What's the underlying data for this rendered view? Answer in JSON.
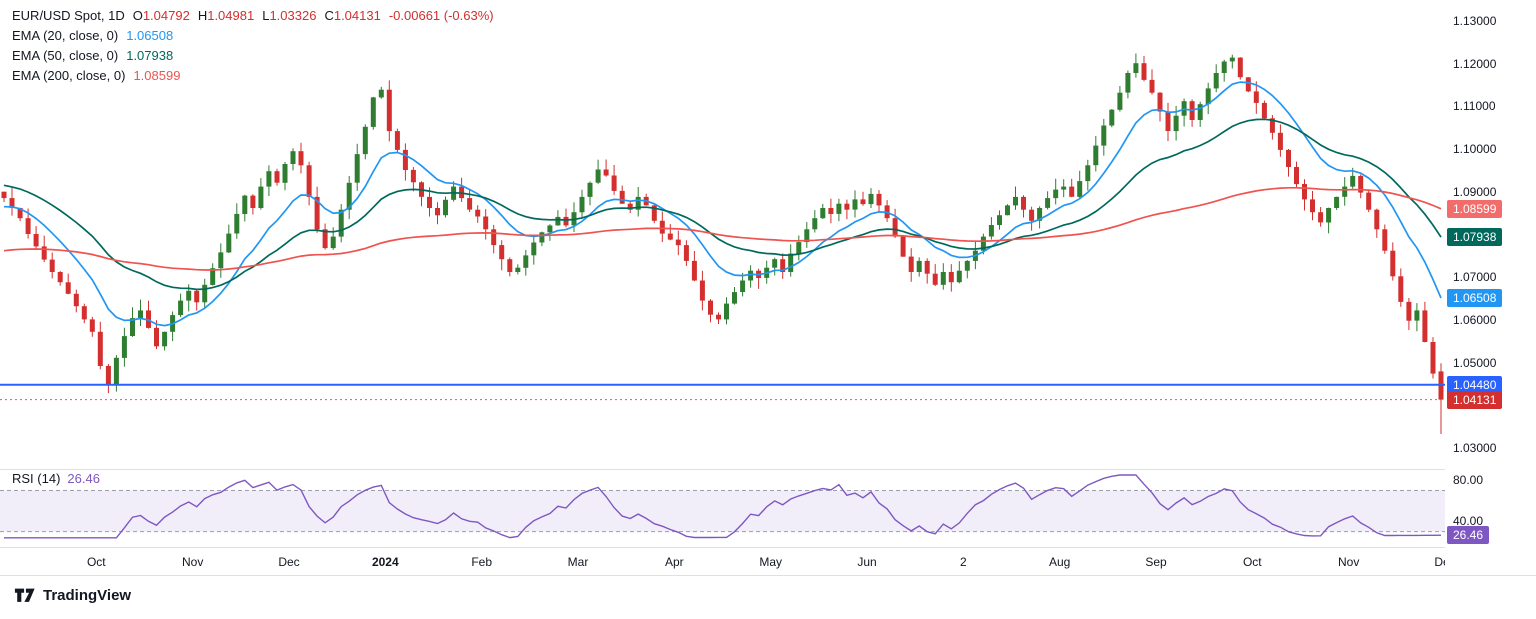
{
  "legend": {
    "symbol": "EUR/USD Spot, 1D",
    "o_key": "O",
    "o_val": "1.04792",
    "h_key": "H",
    "h_val": "1.04981",
    "l_key": "L",
    "l_val": "1.03326",
    "c_key": "C",
    "c_val": "1.04131",
    "change": "-0.00661 (-0.63%)",
    "ema20_label": "EMA (20, close, 0)",
    "ema20_value": "1.06508",
    "ema50_label": "EMA (50, close, 0)",
    "ema50_value": "1.07938",
    "ema200_label": "EMA (200, close, 0)",
    "ema200_value": "1.08599",
    "rsi_label": "RSI (14)",
    "rsi_value": "26.46"
  },
  "colors": {
    "down_text": "#d32f2f",
    "text": "#131722",
    "axis_border": "#dde0e6"
  },
  "footer": {
    "brand": "TradingView"
  },
  "chart_data": {
    "type": "candlestick",
    "title": "EUR/USD Spot, 1D",
    "interval": "1D",
    "current_ohlc": {
      "open": 1.04792,
      "high": 1.04981,
      "low": 1.03326,
      "close": 1.04131,
      "change": -0.00661,
      "change_pct": -0.63
    },
    "y_range": [
      1.0253,
      1.1349
    ],
    "y_ticks": [
      1.13,
      1.12,
      1.11,
      1.1,
      1.09,
      1.07,
      1.06,
      1.05,
      1.03
    ],
    "days_represented": 320,
    "candle_up": "#2f7d31",
    "candle_down": "#d32f2f",
    "closes": [
      1.0885,
      1.0862,
      1.0838,
      1.0801,
      1.0772,
      1.0741,
      1.0712,
      1.0688,
      1.0661,
      1.0632,
      1.0601,
      1.0572,
      1.0492,
      1.0448,
      1.0511,
      1.0562,
      1.0604,
      1.0622,
      1.0581,
      1.0538,
      1.0572,
      1.0611,
      1.0645,
      1.0668,
      1.0641,
      1.0682,
      1.0721,
      1.0758,
      1.0802,
      1.0848,
      1.0891,
      1.0862,
      1.0912,
      1.0948,
      1.0921,
      1.0965,
      1.0995,
      1.0962,
      1.0888,
      1.0812,
      1.0768,
      1.0795,
      1.0858,
      1.0921,
      1.0988,
      1.1052,
      1.1121,
      1.1139,
      1.1042,
      1.0998,
      1.0951,
      1.0922,
      1.0888,
      1.0862,
      1.0845,
      1.0881,
      1.0912,
      1.0885,
      1.0858,
      1.0842,
      1.0812,
      1.0775,
      1.0742,
      1.0712,
      1.0722,
      1.0751,
      1.0781,
      1.0805,
      1.0821,
      1.0841,
      1.0821,
      1.0852,
      1.0888,
      1.0921,
      1.0952,
      1.0938,
      1.0902,
      1.0872,
      1.0858,
      1.0888,
      1.0868,
      1.0832,
      1.0802,
      1.0788,
      1.0775,
      1.0738,
      1.0692,
      1.0645,
      1.0612,
      1.0601,
      1.0638,
      1.0665,
      1.0692,
      1.0715,
      1.0698,
      1.0722,
      1.0742,
      1.0712,
      1.0755,
      1.0782,
      1.0812,
      1.0838,
      1.0862,
      1.0848,
      1.0872,
      1.0858,
      1.0882,
      1.0871,
      1.0895,
      1.0868,
      1.0838,
      1.0795,
      1.0748,
      1.0712,
      1.0738,
      1.0708,
      1.0682,
      1.0712,
      1.0688,
      1.0715,
      1.0738,
      1.0762,
      1.0795,
      1.0822,
      1.0845,
      1.0868,
      1.0888,
      1.0858,
      1.0832,
      1.0862,
      1.0885,
      1.0905,
      1.0912,
      1.0888,
      1.0925,
      1.0962,
      1.1008,
      1.1055,
      1.1092,
      1.1132,
      1.1178,
      1.1201,
      1.1162,
      1.1132,
      1.1088,
      1.1042,
      1.1078,
      1.1112,
      1.1068,
      1.1105,
      1.1142,
      1.1178,
      1.1205,
      1.1214,
      1.1168,
      1.1135,
      1.1108,
      1.1072,
      1.1038,
      1.0998,
      1.0958,
      1.0918,
      1.0882,
      1.0852,
      1.0828,
      1.0862,
      1.0888,
      1.0912,
      1.0937,
      1.0898,
      1.0858,
      1.0812,
      1.0762,
      1.0702,
      1.0642,
      1.0598,
      1.0622,
      1.0548,
      1.0474,
      1.04131
    ],
    "x_labels": [
      {
        "text": "Oct",
        "i": 12
      },
      {
        "text": "Nov",
        "i": 24
      },
      {
        "text": "Dec",
        "i": 36
      },
      {
        "text": "2024",
        "i": 48
      },
      {
        "text": "Feb",
        "i": 60
      },
      {
        "text": "Mar",
        "i": 72
      },
      {
        "text": "Apr",
        "i": 84
      },
      {
        "text": "May",
        "i": 96
      },
      {
        "text": "Jun",
        "i": 108
      },
      {
        "text": "2",
        "i": 120
      },
      {
        "text": "Aug",
        "i": 132
      },
      {
        "text": "Sep",
        "i": 144
      },
      {
        "text": "Oct",
        "i": 156
      },
      {
        "text": "Nov",
        "i": 168
      },
      {
        "text": "Dec",
        "i": 180
      }
    ],
    "emas": [
      {
        "period": 20,
        "start": 1.0865,
        "last": 1.06508,
        "color": "#2196f3",
        "badge": "#2196f3"
      },
      {
        "period": 50,
        "start": 1.0915,
        "last": 1.07938,
        "color": "#00695c",
        "badge": "#00695c"
      },
      {
        "period": 200,
        "start": 1.0762,
        "last": 1.08599,
        "color": "#ef5350",
        "badge": "#f26c6c"
      }
    ],
    "levels": [
      {
        "value": 1.0448,
        "label": "1.04480",
        "color": "#2962ff",
        "badge": "#2962ff",
        "style": "solid"
      },
      {
        "value": 1.04131,
        "label": "1.04131",
        "color": "#ef5350",
        "badge": "#d32f2f",
        "style": "dotted"
      }
    ],
    "rsi": {
      "period": 14,
      "last": 26.46,
      "bands": [
        70,
        30
      ],
      "ticks": [
        80,
        40
      ],
      "range": [
        15,
        90
      ],
      "color": "#7e57c2",
      "band_fill": "rgba(126,87,194,0.10)",
      "badge": "#7e57c2"
    }
  }
}
